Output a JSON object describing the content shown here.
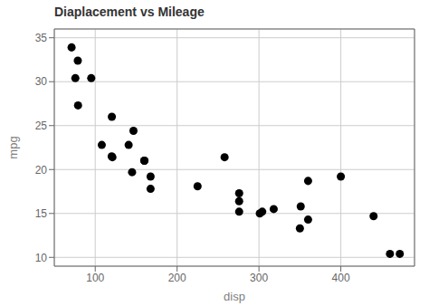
{
  "chart_data": {
    "type": "scatter",
    "title": "Diaplacement vs Mileage",
    "xlabel": "disp",
    "ylabel": "mpg",
    "x": [
      160,
      160,
      108,
      258,
      360,
      225,
      360,
      146.7,
      140.8,
      167.6,
      167.6,
      275.8,
      275.8,
      275.8,
      472,
      460,
      440,
      78.7,
      75.7,
      71.1,
      120.1,
      318,
      304,
      350,
      400,
      79,
      120.3,
      95.1,
      351,
      145,
      301,
      121
    ],
    "values": [
      21.0,
      21.0,
      22.8,
      21.4,
      18.7,
      18.1,
      14.3,
      24.4,
      22.8,
      19.2,
      17.8,
      16.4,
      17.3,
      15.2,
      10.4,
      10.4,
      14.7,
      32.4,
      30.4,
      33.9,
      21.5,
      15.5,
      15.2,
      13.3,
      19.2,
      27.3,
      26.0,
      30.4,
      15.8,
      19.7,
      15.0,
      21.4
    ],
    "color": "#000000",
    "xlim": [
      50,
      490
    ],
    "ylim": [
      9,
      36
    ],
    "xticks": [
      100,
      200,
      300,
      400
    ],
    "yticks": [
      10,
      15,
      20,
      25,
      30,
      35
    ],
    "grid": true
  }
}
